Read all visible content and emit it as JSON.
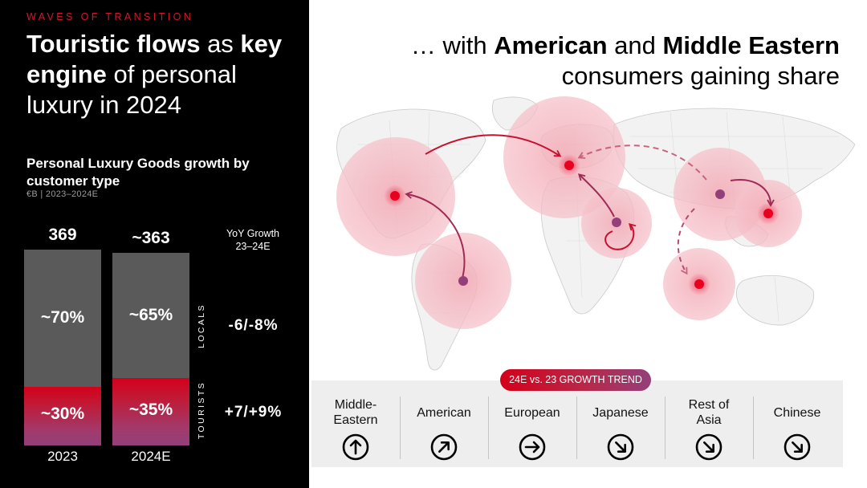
{
  "kicker": "WAVES OF TRANSITION",
  "headline": {
    "part1": "Touristic flows",
    "part2": " as ",
    "part3": "key engine",
    "part4": " of personal luxury in 2024"
  },
  "right_title": {
    "part1": "… with ",
    "part2": "American",
    "part3": " and ",
    "part4": "Middle Eastern",
    "part5": "consumers gaining share"
  },
  "chart_data": {
    "type": "bar",
    "title": "Personal Luxury Goods growth by customer type",
    "unit": "€B | 2023–2024E",
    "categories": [
      "2023",
      "2024E"
    ],
    "totals": [
      369,
      363
    ],
    "total_labels": [
      "369",
      "~363"
    ],
    "series": [
      {
        "name": "LOCALS",
        "values": [
          70,
          65
        ],
        "labels": [
          "~70%",
          "~65%"
        ],
        "color": "#5a5a5a"
      },
      {
        "name": "TOURISTS",
        "values": [
          30,
          35
        ],
        "labels": [
          "~30%",
          "~35%"
        ],
        "color": "#c8102e"
      }
    ],
    "yoy_header": "YoY Growth 23–24E",
    "yoy": {
      "LOCALS": "-6/-8%",
      "TOURISTS": "+7/+9%"
    }
  },
  "legend": {
    "pill": "24E vs. 23 GROWTH TREND",
    "segments": [
      {
        "name": "Middle-Eastern",
        "trend": "up"
      },
      {
        "name": "American",
        "trend": "up-right"
      },
      {
        "name": "European",
        "trend": "right"
      },
      {
        "name": "Japanese",
        "trend": "down-right"
      },
      {
        "name": "Rest of Asia",
        "trend": "down-right"
      },
      {
        "name": "Chinese",
        "trend": "down-right"
      }
    ]
  },
  "colors": {
    "accent_red": "#d4001a",
    "accent_purple": "#93407a",
    "locals_gray": "#5a5a5a"
  }
}
